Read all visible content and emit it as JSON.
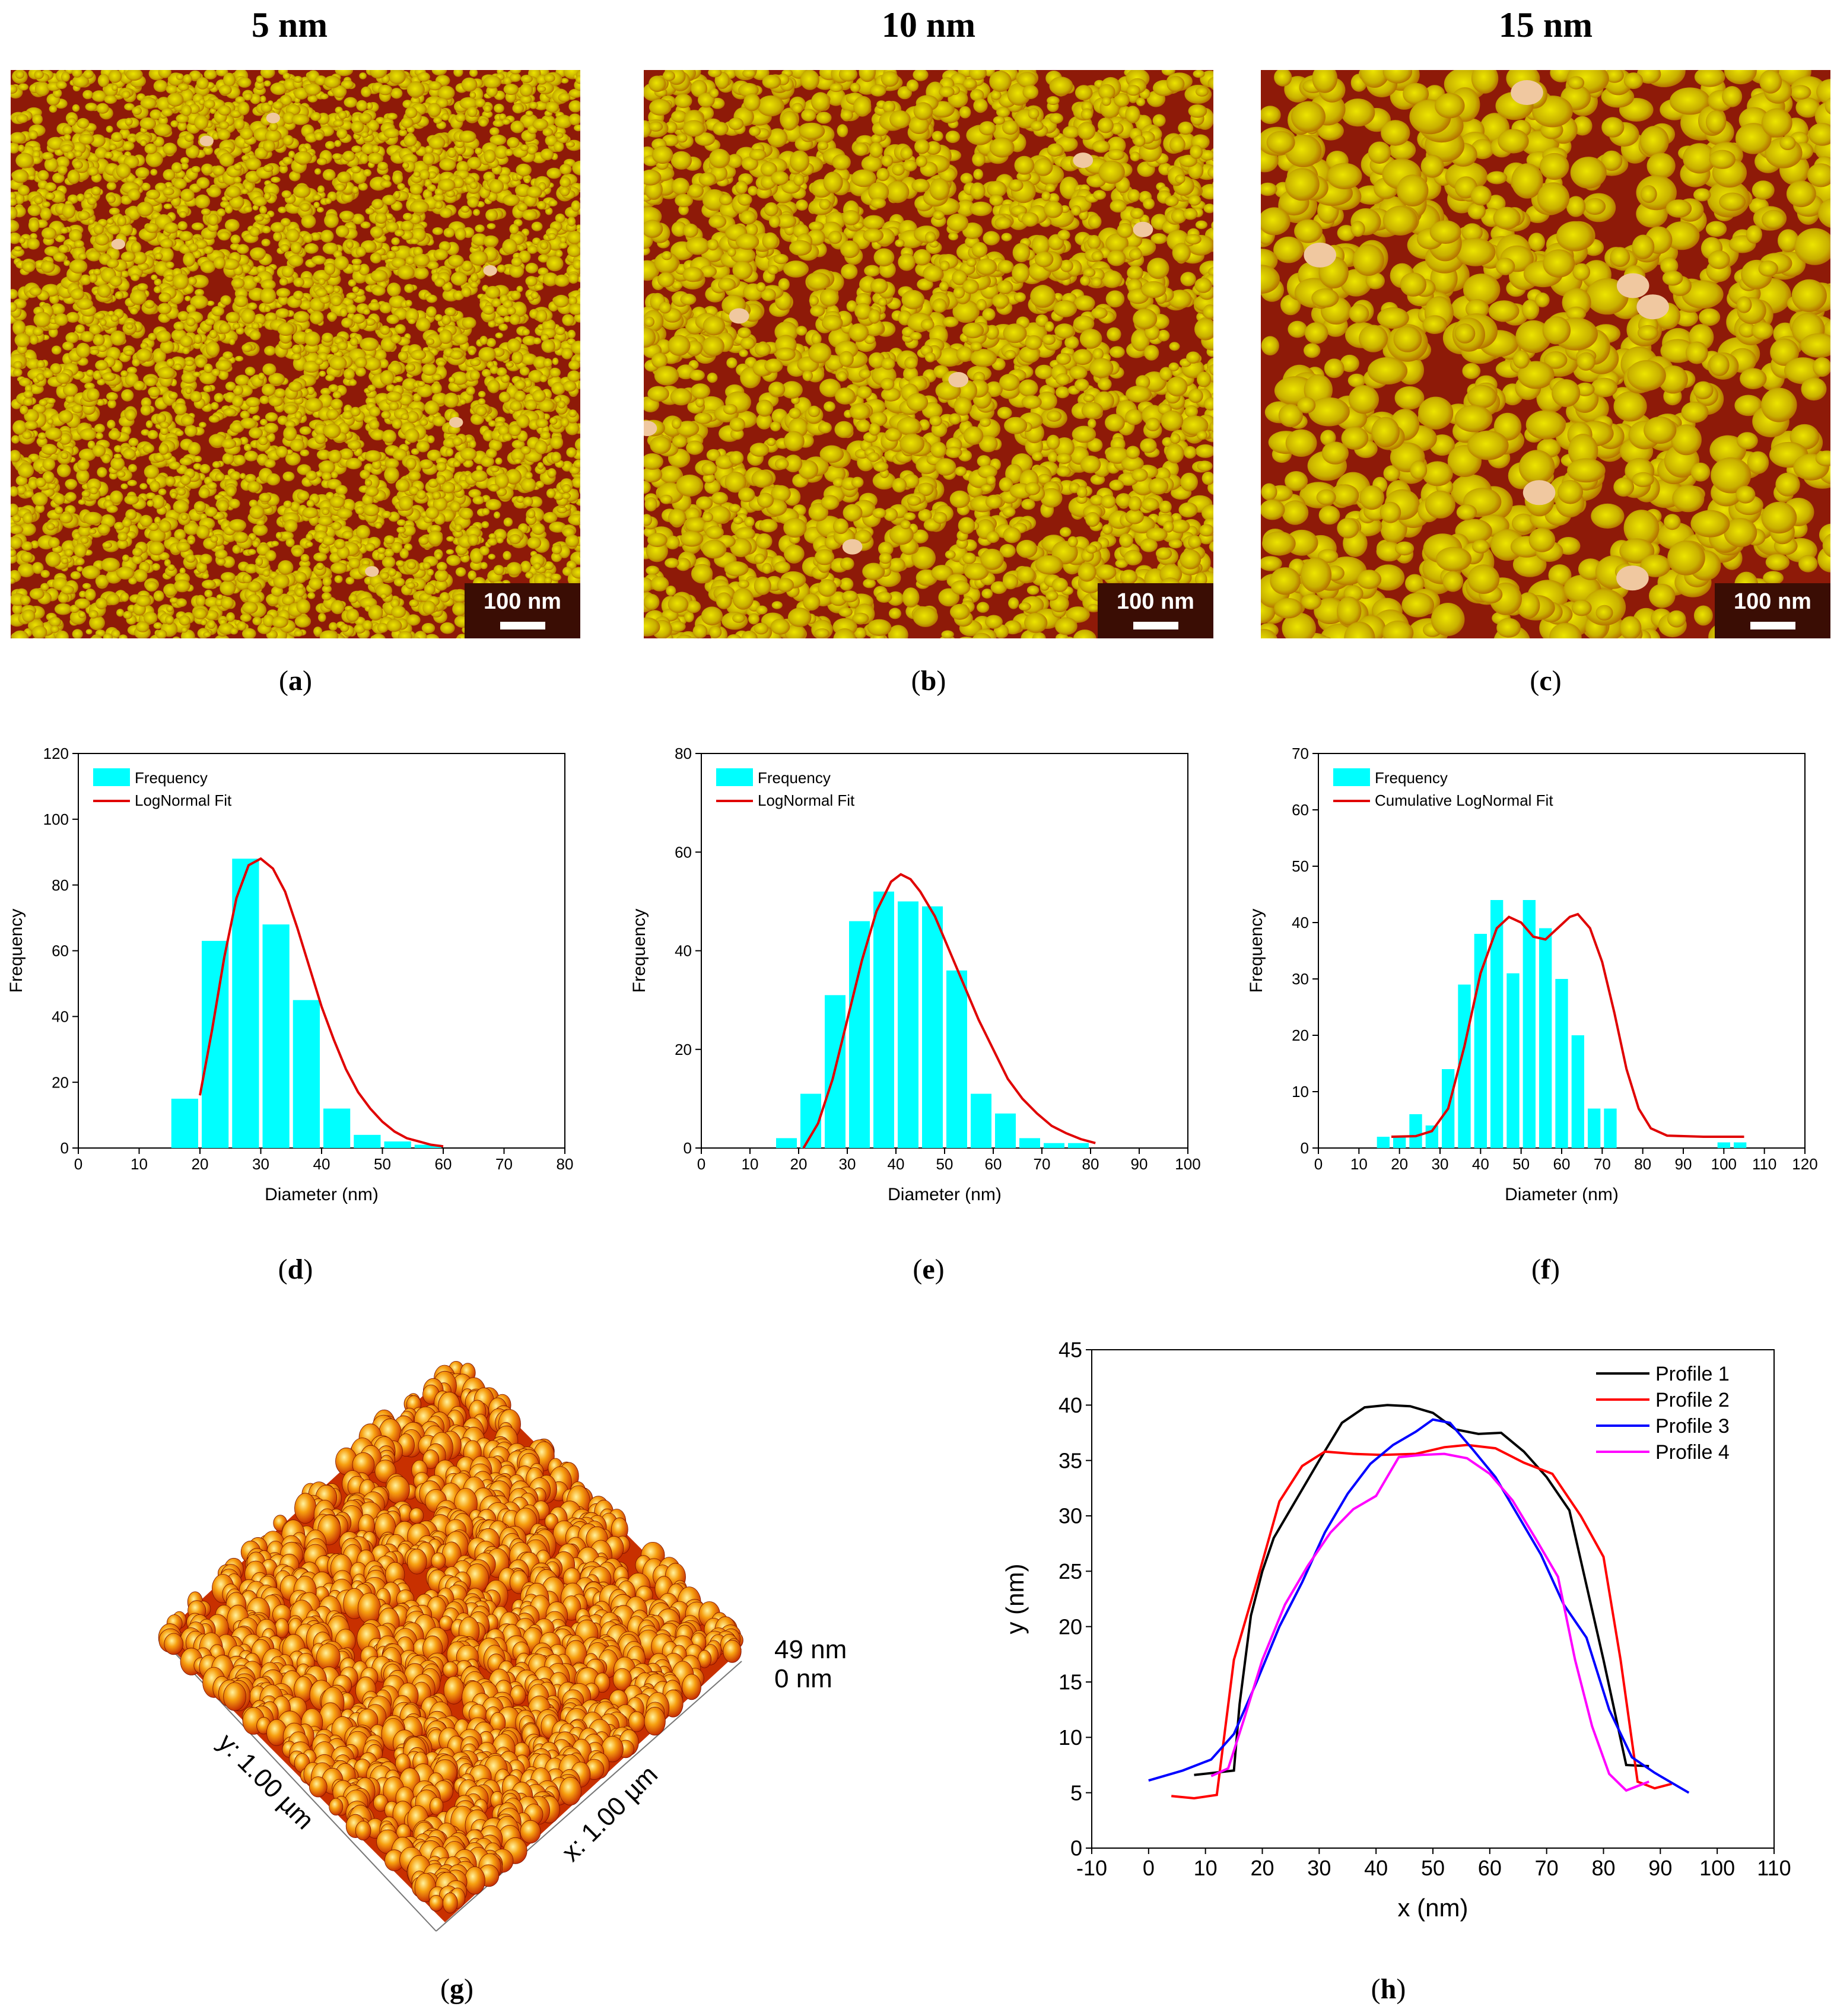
{
  "panels": {
    "a": {
      "title": "5 nm",
      "caption_letter": "a",
      "scalebar": "100 nm"
    },
    "b": {
      "title": "10 nm",
      "caption_letter": "b",
      "scalebar": "100 nm"
    },
    "c": {
      "title": "15 nm",
      "caption_letter": "c",
      "scalebar": "100 nm"
    },
    "d": {
      "caption_letter": "d"
    },
    "e": {
      "caption_letter": "e"
    },
    "f": {
      "caption_letter": "f"
    },
    "g": {
      "caption_letter": "g",
      "x_label": "x: 1.00 µm",
      "y_label": "y: 1.00 µm",
      "z_max": "49 nm",
      "z_min": "0 nm"
    },
    "h": {
      "caption_letter": "h"
    }
  },
  "colors": {
    "bar": "#00ffff",
    "fit": "#e00000",
    "afm_low": "#8e1a08",
    "afm_high": "#e8e000",
    "profile1": "#000000",
    "profile2": "#ff0000",
    "profile3": "#0000ff",
    "profile4": "#ff00ff"
  },
  "chart_data": [
    {
      "id": "d",
      "type": "bar",
      "xlabel": "Diameter (nm)",
      "ylabel": "Frequency",
      "xlim": [
        0,
        80
      ],
      "ylim": [
        0,
        120
      ],
      "xticks": [
        0,
        10,
        20,
        30,
        40,
        50,
        60,
        70,
        80
      ],
      "yticks": [
        0,
        20,
        40,
        60,
        80,
        100,
        120
      ],
      "bin_width": 5,
      "bins": [
        17.5,
        22.5,
        27.5,
        32.5,
        37.5,
        42.5,
        47.5,
        52.5,
        57.5
      ],
      "values": [
        15,
        63,
        88,
        68,
        45,
        12,
        4,
        2,
        1
      ],
      "series": [
        {
          "name": "Frequency",
          "kind": "bar"
        },
        {
          "name": "LogNormal Fit",
          "kind": "line",
          "points": [
            [
              20,
              16
            ],
            [
              22,
              36
            ],
            [
              24,
              58
            ],
            [
              26,
              76
            ],
            [
              28,
              86
            ],
            [
              30,
              88
            ],
            [
              32,
              85
            ],
            [
              34,
              78
            ],
            [
              36,
              67
            ],
            [
              38,
              55
            ],
            [
              40,
              43
            ],
            [
              42,
              33
            ],
            [
              44,
              24
            ],
            [
              46,
              17
            ],
            [
              48,
              12
            ],
            [
              50,
              8
            ],
            [
              52,
              5
            ],
            [
              54,
              3
            ],
            [
              56,
              2
            ],
            [
              58,
              1
            ],
            [
              60,
              0.5
            ]
          ]
        }
      ],
      "legend": "top-left"
    },
    {
      "id": "e",
      "type": "bar",
      "xlabel": "Diameter (nm)",
      "ylabel": "Frequency",
      "xlim": [
        0,
        100
      ],
      "ylim": [
        0,
        80
      ],
      "xticks": [
        0,
        10,
        20,
        30,
        40,
        50,
        60,
        70,
        80,
        90,
        100
      ],
      "yticks": [
        0,
        20,
        40,
        60,
        80
      ],
      "bin_width": 5,
      "bins": [
        17.5,
        22.5,
        27.5,
        32.5,
        37.5,
        42.5,
        47.5,
        52.5,
        57.5,
        62.5,
        67.5,
        72.5,
        77.5,
        82.5
      ],
      "values": [
        2,
        11,
        31,
        46,
        52,
        50,
        49,
        36,
        11,
        7,
        2,
        1,
        1,
        0
      ],
      "series": [
        {
          "name": "Frequency",
          "kind": "bar"
        },
        {
          "name": "LogNormal Fit",
          "kind": "line",
          "points": [
            [
              21,
              0
            ],
            [
              24,
              5
            ],
            [
              27,
              14
            ],
            [
              30,
              26
            ],
            [
              33,
              38
            ],
            [
              36,
              48
            ],
            [
              39,
              54
            ],
            [
              41,
              55.5
            ],
            [
              43,
              54.5
            ],
            [
              45,
              52
            ],
            [
              48,
              47
            ],
            [
              51,
              40
            ],
            [
              54,
              33
            ],
            [
              57,
              26
            ],
            [
              60,
              20
            ],
            [
              63,
              14
            ],
            [
              66,
              10
            ],
            [
              69,
              7
            ],
            [
              72,
              4.5
            ],
            [
              75,
              3
            ],
            [
              78,
              1.8
            ],
            [
              81,
              1
            ]
          ]
        }
      ],
      "legend": "top-left"
    },
    {
      "id": "f",
      "type": "bar",
      "xlabel": "Diameter (nm)",
      "ylabel": "Frequency",
      "xlim": [
        0,
        120
      ],
      "ylim": [
        0,
        70
      ],
      "xticks": [
        0,
        10,
        20,
        30,
        40,
        50,
        60,
        70,
        80,
        90,
        100,
        110,
        120
      ],
      "yticks": [
        0,
        10,
        20,
        30,
        40,
        50,
        60,
        70
      ],
      "bin_width": 4,
      "bins": [
        16,
        20,
        24,
        28,
        32,
        36,
        40,
        44,
        48,
        52,
        56,
        60,
        64,
        68,
        72,
        76,
        80,
        84,
        100,
        104
      ],
      "values": [
        2,
        2,
        6,
        4,
        14,
        29,
        38,
        44,
        31,
        44,
        39,
        30,
        20,
        7,
        7,
        0,
        0,
        0,
        1,
        1
      ],
      "series": [
        {
          "name": "Frequency",
          "kind": "bar"
        },
        {
          "name": "Cumulative LogNormal Fit",
          "kind": "line",
          "points": [
            [
              18,
              2
            ],
            [
              24,
              2.1
            ],
            [
              28,
              3
            ],
            [
              32,
              7
            ],
            [
              36,
              18
            ],
            [
              40,
              31
            ],
            [
              44,
              39
            ],
            [
              47,
              41
            ],
            [
              50,
              40
            ],
            [
              53,
              37.5
            ],
            [
              56,
              37
            ],
            [
              59,
              39
            ],
            [
              62,
              41
            ],
            [
              64,
              41.5
            ],
            [
              67,
              39
            ],
            [
              70,
              33
            ],
            [
              73,
              24
            ],
            [
              76,
              14
            ],
            [
              79,
              7
            ],
            [
              82,
              3.5
            ],
            [
              86,
              2.2
            ],
            [
              95,
              2
            ],
            [
              105,
              2
            ]
          ]
        }
      ],
      "legend": "top-left"
    },
    {
      "id": "h",
      "type": "line",
      "xlabel": "x (nm)",
      "ylabel": "y (nm)",
      "xlim": [
        -10,
        110
      ],
      "ylim": [
        0,
        45
      ],
      "xticks": [
        -10,
        0,
        10,
        20,
        30,
        40,
        50,
        60,
        70,
        80,
        90,
        100,
        110
      ],
      "yticks": [
        0,
        5,
        10,
        15,
        20,
        25,
        30,
        35,
        40,
        45
      ],
      "series": [
        {
          "name": "Profile 1",
          "color": "#000000",
          "points": [
            [
              8,
              6.6
            ],
            [
              15,
              7
            ],
            [
              16,
              13
            ],
            [
              18,
              21
            ],
            [
              20,
              25
            ],
            [
              22,
              28
            ],
            [
              26,
              31.5
            ],
            [
              30,
              35
            ],
            [
              34,
              38.4
            ],
            [
              38,
              39.8
            ],
            [
              42,
              40
            ],
            [
              46,
              39.9
            ],
            [
              50,
              39.3
            ],
            [
              54,
              37.8
            ],
            [
              58,
              37.4
            ],
            [
              62,
              37.5
            ],
            [
              66,
              35.8
            ],
            [
              70,
              33.5
            ],
            [
              74,
              30.5
            ],
            [
              76,
              26
            ],
            [
              80,
              17
            ],
            [
              84,
              7.5
            ],
            [
              88,
              7.4
            ]
          ]
        },
        {
          "name": "Profile 2",
          "color": "#ff0000",
          "points": [
            [
              4,
              4.7
            ],
            [
              8,
              4.5
            ],
            [
              12,
              4.8
            ],
            [
              15,
              17
            ],
            [
              19,
              24
            ],
            [
              23,
              31.3
            ],
            [
              27,
              34.5
            ],
            [
              31,
              35.8
            ],
            [
              36,
              35.6
            ],
            [
              41,
              35.5
            ],
            [
              47,
              35.6
            ],
            [
              52,
              36.2
            ],
            [
              56,
              36.4
            ],
            [
              61,
              36.1
            ],
            [
              66,
              34.8
            ],
            [
              71,
              33.8
            ],
            [
              76,
              30
            ],
            [
              80,
              26.3
            ],
            [
              83,
              17
            ],
            [
              86,
              6
            ],
            [
              89,
              5.4
            ],
            [
              92,
              5.8
            ]
          ]
        },
        {
          "name": "Profile 3",
          "color": "#0000ff",
          "points": [
            [
              0,
              6.1
            ],
            [
              6,
              7
            ],
            [
              11,
              8
            ],
            [
              15,
              10.3
            ],
            [
              19,
              15
            ],
            [
              23,
              20
            ],
            [
              27,
              24
            ],
            [
              31,
              28.5
            ],
            [
              35,
              32
            ],
            [
              39,
              34.7
            ],
            [
              43,
              36.4
            ],
            [
              47,
              37.6
            ],
            [
              50,
              38.7
            ],
            [
              53,
              38.4
            ],
            [
              57,
              36
            ],
            [
              61,
              33.5
            ],
            [
              65,
              30
            ],
            [
              69,
              26.5
            ],
            [
              73,
              22
            ],
            [
              77,
              19
            ],
            [
              81,
              12.5
            ],
            [
              85,
              8.2
            ],
            [
              89,
              6.8
            ],
            [
              95,
              5
            ]
          ]
        },
        {
          "name": "Profile 4",
          "color": "#ff00ff",
          "points": [
            [
              11,
              6.5
            ],
            [
              14,
              7.2
            ],
            [
              17,
              12
            ],
            [
              20,
              17
            ],
            [
              24,
              22
            ],
            [
              28,
              25.5
            ],
            [
              32,
              28.5
            ],
            [
              36,
              30.6
            ],
            [
              40,
              31.8
            ],
            [
              44,
              35.3
            ],
            [
              48,
              35.5
            ],
            [
              52,
              35.6
            ],
            [
              56,
              35.2
            ],
            [
              60,
              33.8
            ],
            [
              64,
              31.4
            ],
            [
              68,
              28
            ],
            [
              72,
              24.5
            ],
            [
              75,
              17
            ],
            [
              78,
              11
            ],
            [
              81,
              6.7
            ],
            [
              84,
              5.2
            ],
            [
              88,
              6
            ]
          ]
        }
      ],
      "legend": "top-right"
    }
  ]
}
